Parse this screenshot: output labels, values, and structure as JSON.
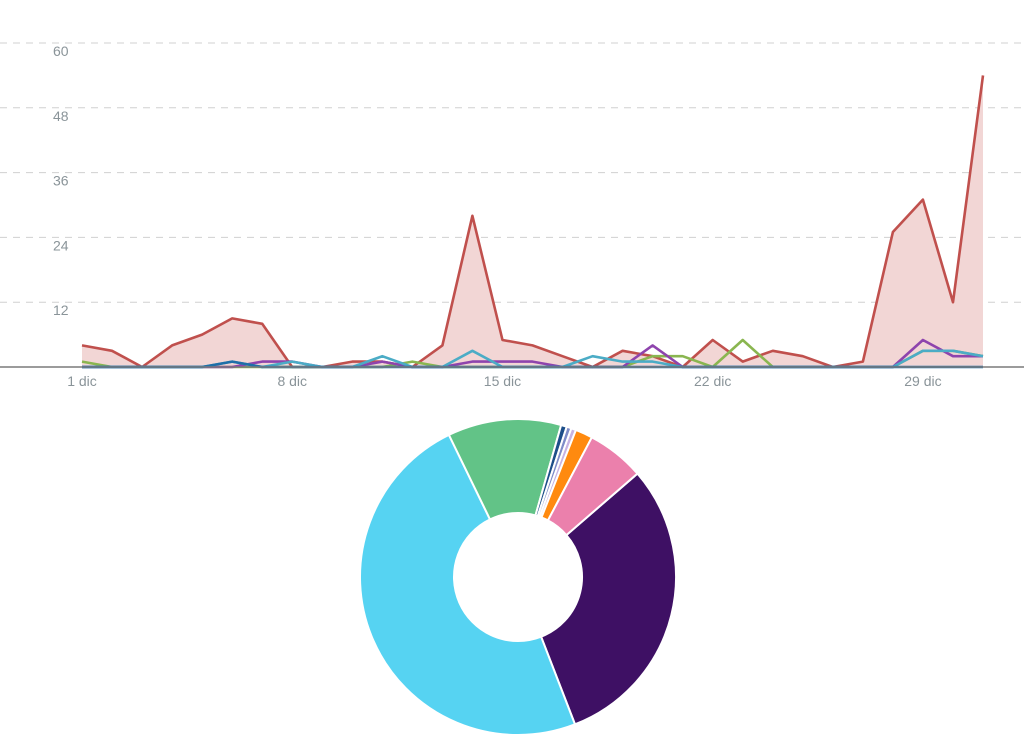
{
  "chart_data": [
    {
      "type": "area",
      "x": [
        1,
        2,
        3,
        4,
        5,
        6,
        7,
        8,
        9,
        10,
        11,
        12,
        13,
        14,
        15,
        16,
        17,
        18,
        19,
        20,
        21,
        22,
        23,
        24,
        25,
        26,
        27,
        28,
        29,
        30,
        31
      ],
      "x_tick_labels": [
        {
          "x": 1,
          "label": "1 dic"
        },
        {
          "x": 8,
          "label": "8 dic"
        },
        {
          "x": 15,
          "label": "15 dic"
        },
        {
          "x": 22,
          "label": "22 dic"
        },
        {
          "x": 29,
          "label": "29 dic"
        }
      ],
      "y_ticks": [
        12,
        24,
        36,
        48,
        60
      ],
      "ylim": [
        0,
        60
      ],
      "grid": true,
      "series": [
        {
          "color": "#c0504d",
          "fill": "#f2d6d5",
          "filled": true,
          "values": [
            4,
            3,
            0,
            4,
            6,
            9,
            8,
            0,
            0,
            1,
            1,
            0,
            4,
            28,
            5,
            4,
            2,
            0,
            3,
            2,
            0,
            5,
            1,
            3,
            2,
            0,
            1,
            25,
            31,
            12,
            54
          ]
        },
        {
          "color": "#8ab650",
          "values": [
            1,
            0,
            0,
            0,
            0,
            0,
            0,
            0,
            0,
            0,
            0,
            1,
            0,
            0,
            0,
            0,
            0,
            0,
            0,
            2,
            2,
            0,
            5,
            0,
            0,
            0,
            0,
            0,
            3,
            3,
            2
          ]
        },
        {
          "color": "#8e44ad",
          "values": [
            0,
            0,
            0,
            0,
            0,
            0,
            1,
            1,
            0,
            0,
            1,
            0,
            0,
            1,
            1,
            1,
            0,
            0,
            0,
            4,
            0,
            0,
            0,
            0,
            0,
            0,
            0,
            0,
            5,
            2,
            2
          ]
        },
        {
          "color": "#4bacc6",
          "values": [
            0,
            0,
            0,
            0,
            0,
            1,
            0,
            1,
            0,
            0,
            2,
            0,
            0,
            3,
            0,
            0,
            0,
            2,
            1,
            1,
            0,
            0,
            0,
            0,
            0,
            0,
            0,
            0,
            3,
            3,
            2
          ]
        },
        {
          "color": "#1f6fa8",
          "values": [
            0,
            0,
            0,
            0,
            0,
            1,
            0,
            0,
            0,
            0,
            0,
            0,
            0,
            0,
            0,
            0,
            0,
            0,
            0,
            0,
            0,
            0,
            0,
            0,
            0,
            0,
            0,
            0,
            0,
            0,
            0
          ]
        }
      ]
    },
    {
      "type": "pie",
      "donut": true,
      "slices": [
        {
          "color": "#3e1064",
          "value": 31.0
        },
        {
          "color": "#56d3f2",
          "value": 49.5
        },
        {
          "color": "#62c387",
          "value": 11.8
        },
        {
          "color": "#1d4e89",
          "value": 0.6
        },
        {
          "color": "#7e8cc8",
          "value": 0.5
        },
        {
          "color": "#c7b3e3",
          "value": 0.5
        },
        {
          "color": "#ff8a0f",
          "value": 1.8
        },
        {
          "color": "#eb80ac",
          "value": 6.0
        }
      ]
    }
  ]
}
